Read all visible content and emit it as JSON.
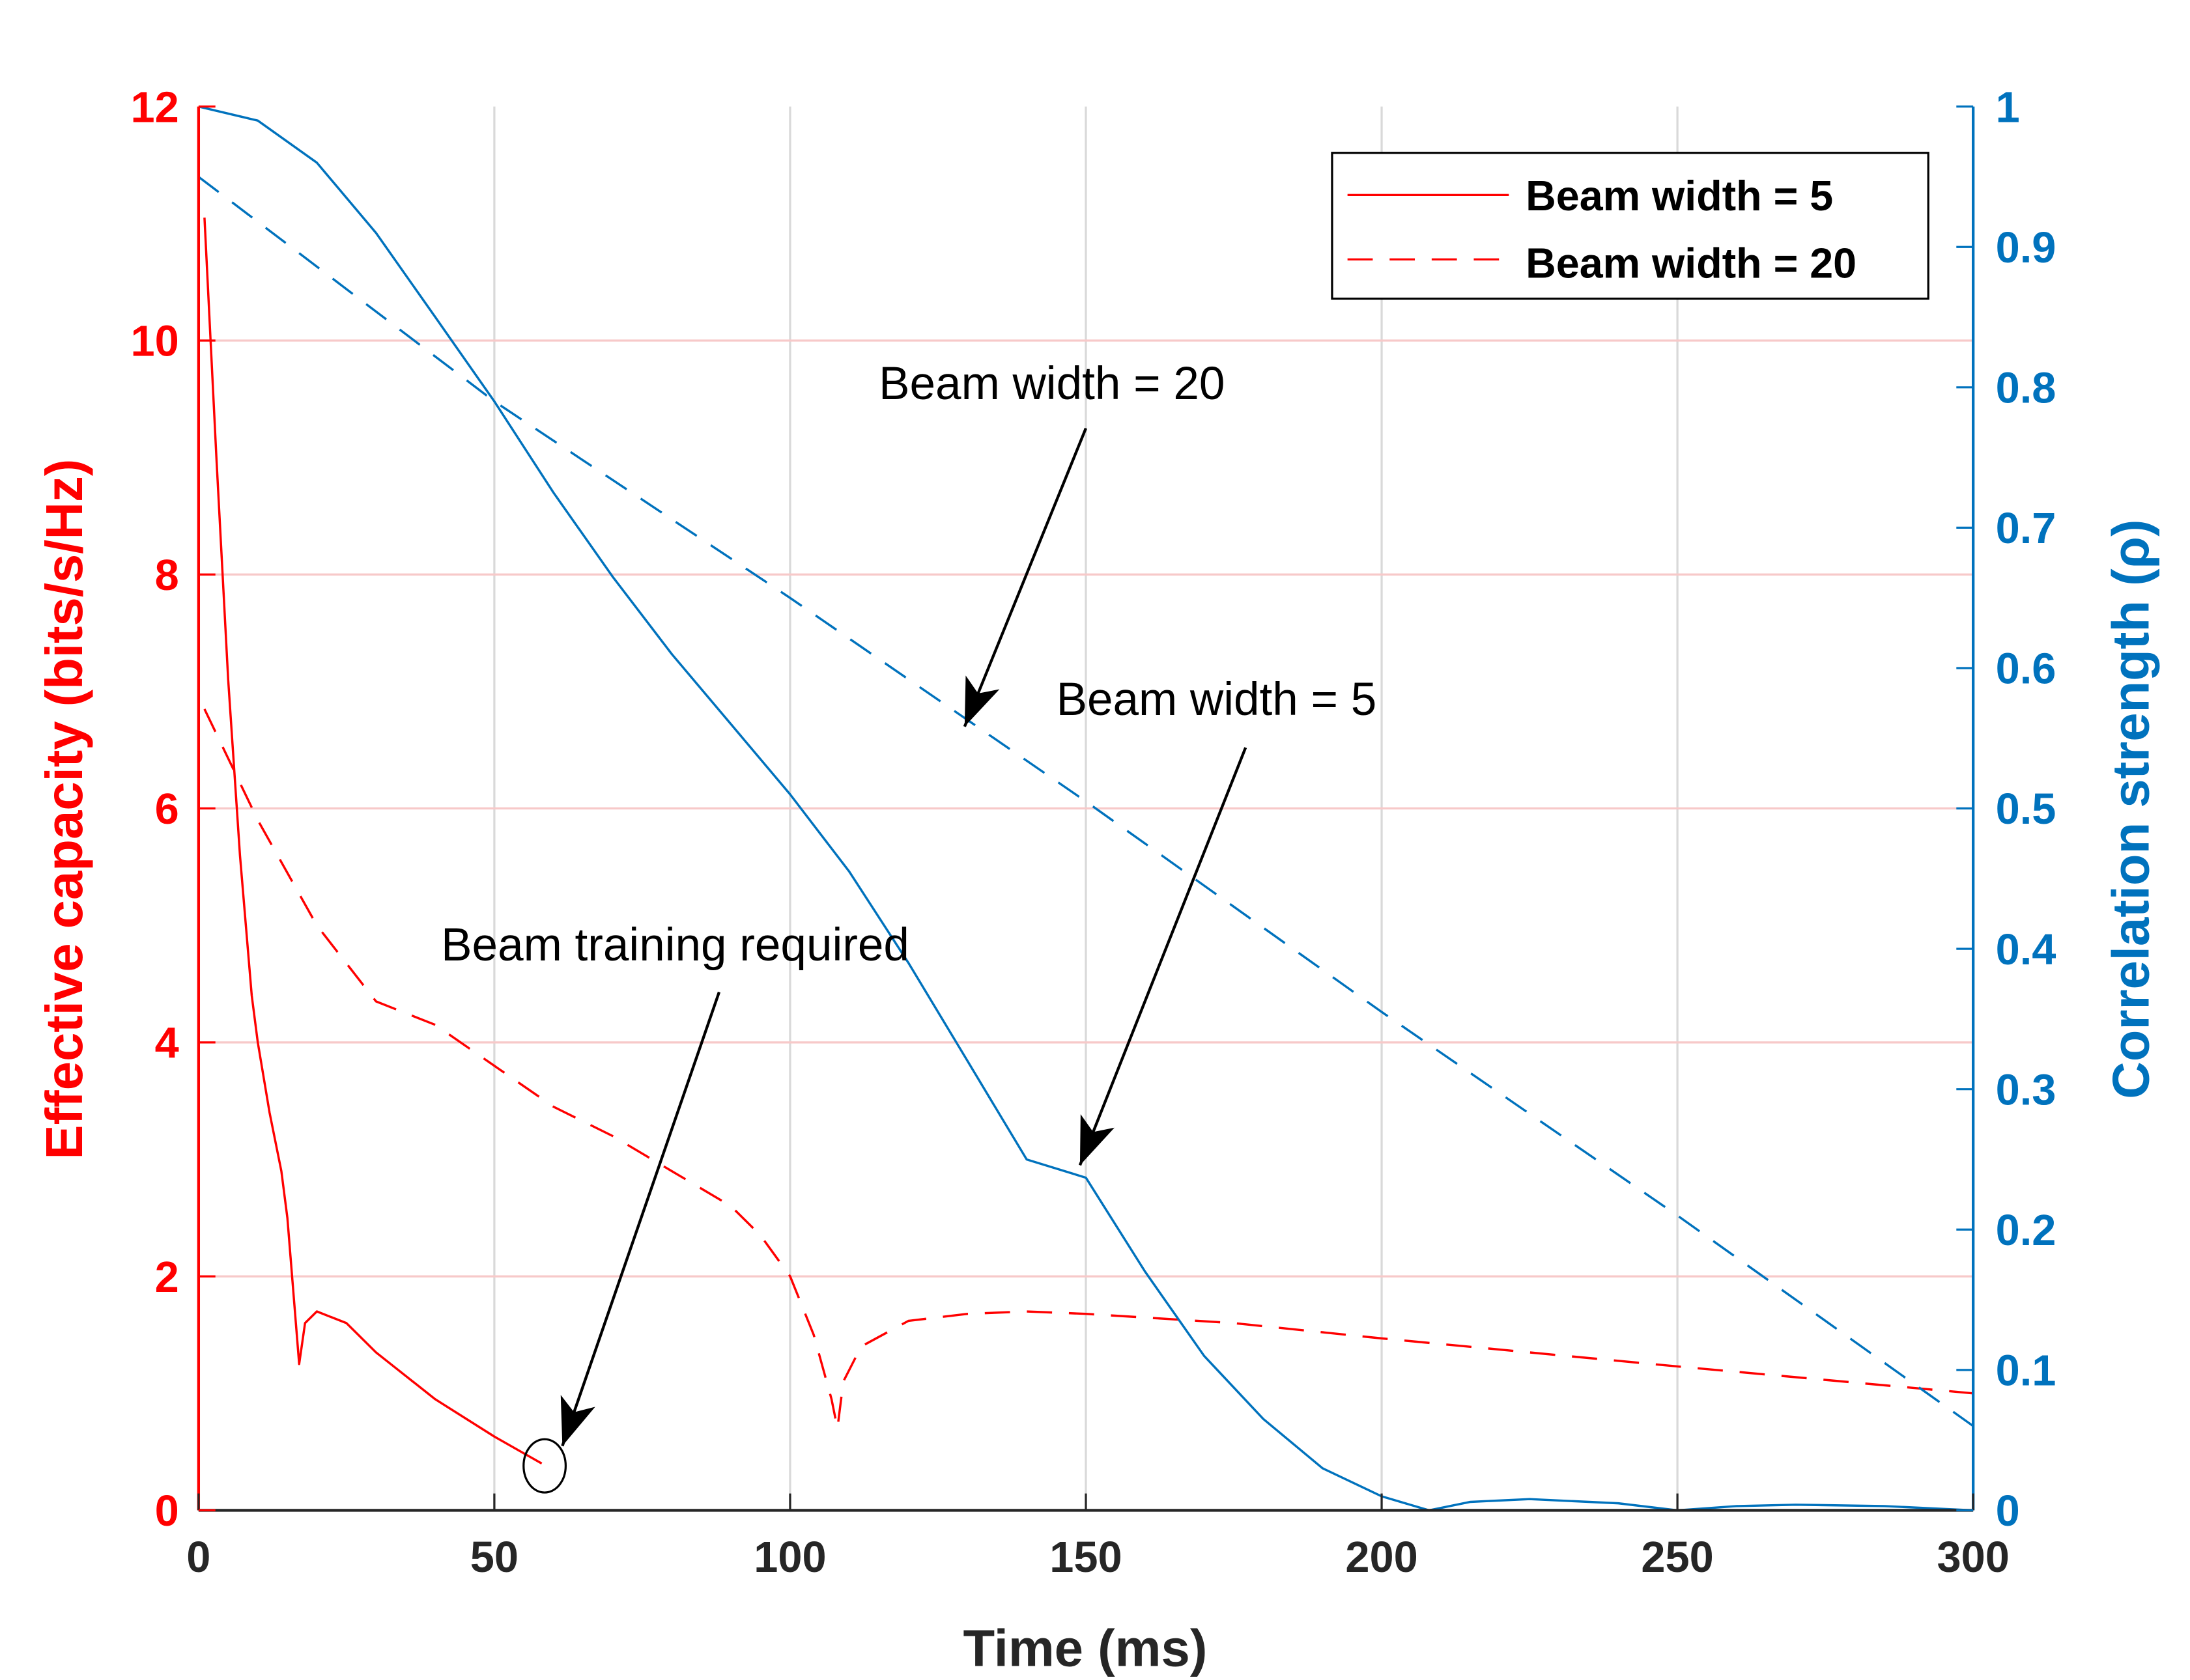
{
  "chart_data": {
    "type": "line",
    "title": "",
    "xlabel": "Time (ms)",
    "ylabel_left": "Effective capacity (bits/s/Hz)",
    "ylabel_right": "Correlation strength (ρ)",
    "xlim": [
      0,
      300
    ],
    "ylim_left": [
      0,
      12
    ],
    "ylim_right": [
      0,
      1
    ],
    "xticks": [
      "0",
      "50",
      "100",
      "150",
      "200",
      "250",
      "300"
    ],
    "yticks_left": [
      "0",
      "2",
      "4",
      "6",
      "8",
      "10",
      "12"
    ],
    "yticks_right": [
      "0",
      "0.1",
      "0.2",
      "0.3",
      "0.4",
      "0.5",
      "0.6",
      "0.7",
      "0.8",
      "0.9",
      "1"
    ],
    "grid": true,
    "legend_position": "top-right",
    "legend": [
      "Beam width = 5",
      "Beam width = 20"
    ],
    "colors": {
      "left": "#ff0000",
      "right": "#0072bd",
      "grid_h": "#f7c9c9",
      "grid_v": "#d9d9d9"
    },
    "series": [
      {
        "name": "Effective capacity, Beam width = 5",
        "axis": "left",
        "style": "solid",
        "x": [
          1,
          3,
          5,
          7,
          9,
          10,
          12,
          14,
          15,
          17,
          18,
          20,
          25,
          30,
          40,
          50,
          58
        ],
        "y": [
          11.05,
          9.0,
          7.1,
          5.6,
          4.4,
          4.0,
          3.4,
          2.9,
          2.5,
          1.25,
          1.6,
          1.7,
          1.6,
          1.35,
          0.95,
          0.63,
          0.4
        ]
      },
      {
        "name": "Effective capacity, Beam width = 20",
        "axis": "left",
        "style": "dashed",
        "x": [
          1,
          10,
          20,
          30,
          40,
          50,
          60,
          70,
          80,
          90,
          95,
          100,
          104,
          107,
          108,
          109,
          112,
          120,
          130,
          140,
          150,
          175,
          200,
          250,
          300
        ],
        "y": [
          6.85,
          5.9,
          5.0,
          4.35,
          4.15,
          3.8,
          3.45,
          3.2,
          2.9,
          2.6,
          2.35,
          2.0,
          1.5,
          0.95,
          0.7,
          1.1,
          1.4,
          1.62,
          1.68,
          1.7,
          1.68,
          1.6,
          1.47,
          1.23,
          1.0
        ]
      },
      {
        "name": "Correlation strength, Beam width = 5",
        "axis": "right",
        "style": "solid",
        "x": [
          0,
          10,
          20,
          30,
          40,
          50,
          60,
          70,
          80,
          90,
          100,
          110,
          120,
          130,
          140,
          150,
          160,
          170,
          180,
          190,
          200,
          208,
          215,
          225,
          240,
          250,
          260,
          270,
          285,
          300
        ],
        "y": [
          1.0,
          0.99,
          0.96,
          0.91,
          0.85,
          0.79,
          0.725,
          0.665,
          0.61,
          0.56,
          0.51,
          0.455,
          0.39,
          0.32,
          0.25,
          0.237,
          0.17,
          0.11,
          0.065,
          0.03,
          0.01,
          0.0,
          0.006,
          0.008,
          0.005,
          0.0,
          0.003,
          0.004,
          0.003,
          0.0
        ]
      },
      {
        "name": "Correlation strength, Beam width = 20",
        "axis": "right",
        "style": "dashed",
        "x": [
          0,
          50,
          100,
          150,
          200,
          250,
          300
        ],
        "y": [
          0.95,
          0.79,
          0.65,
          0.505,
          0.355,
          0.21,
          0.06
        ]
      }
    ],
    "annotations": [
      {
        "text": "Beam width = 20"
      },
      {
        "text": "Beam width = 5"
      },
      {
        "text": "Beam training required"
      }
    ]
  }
}
